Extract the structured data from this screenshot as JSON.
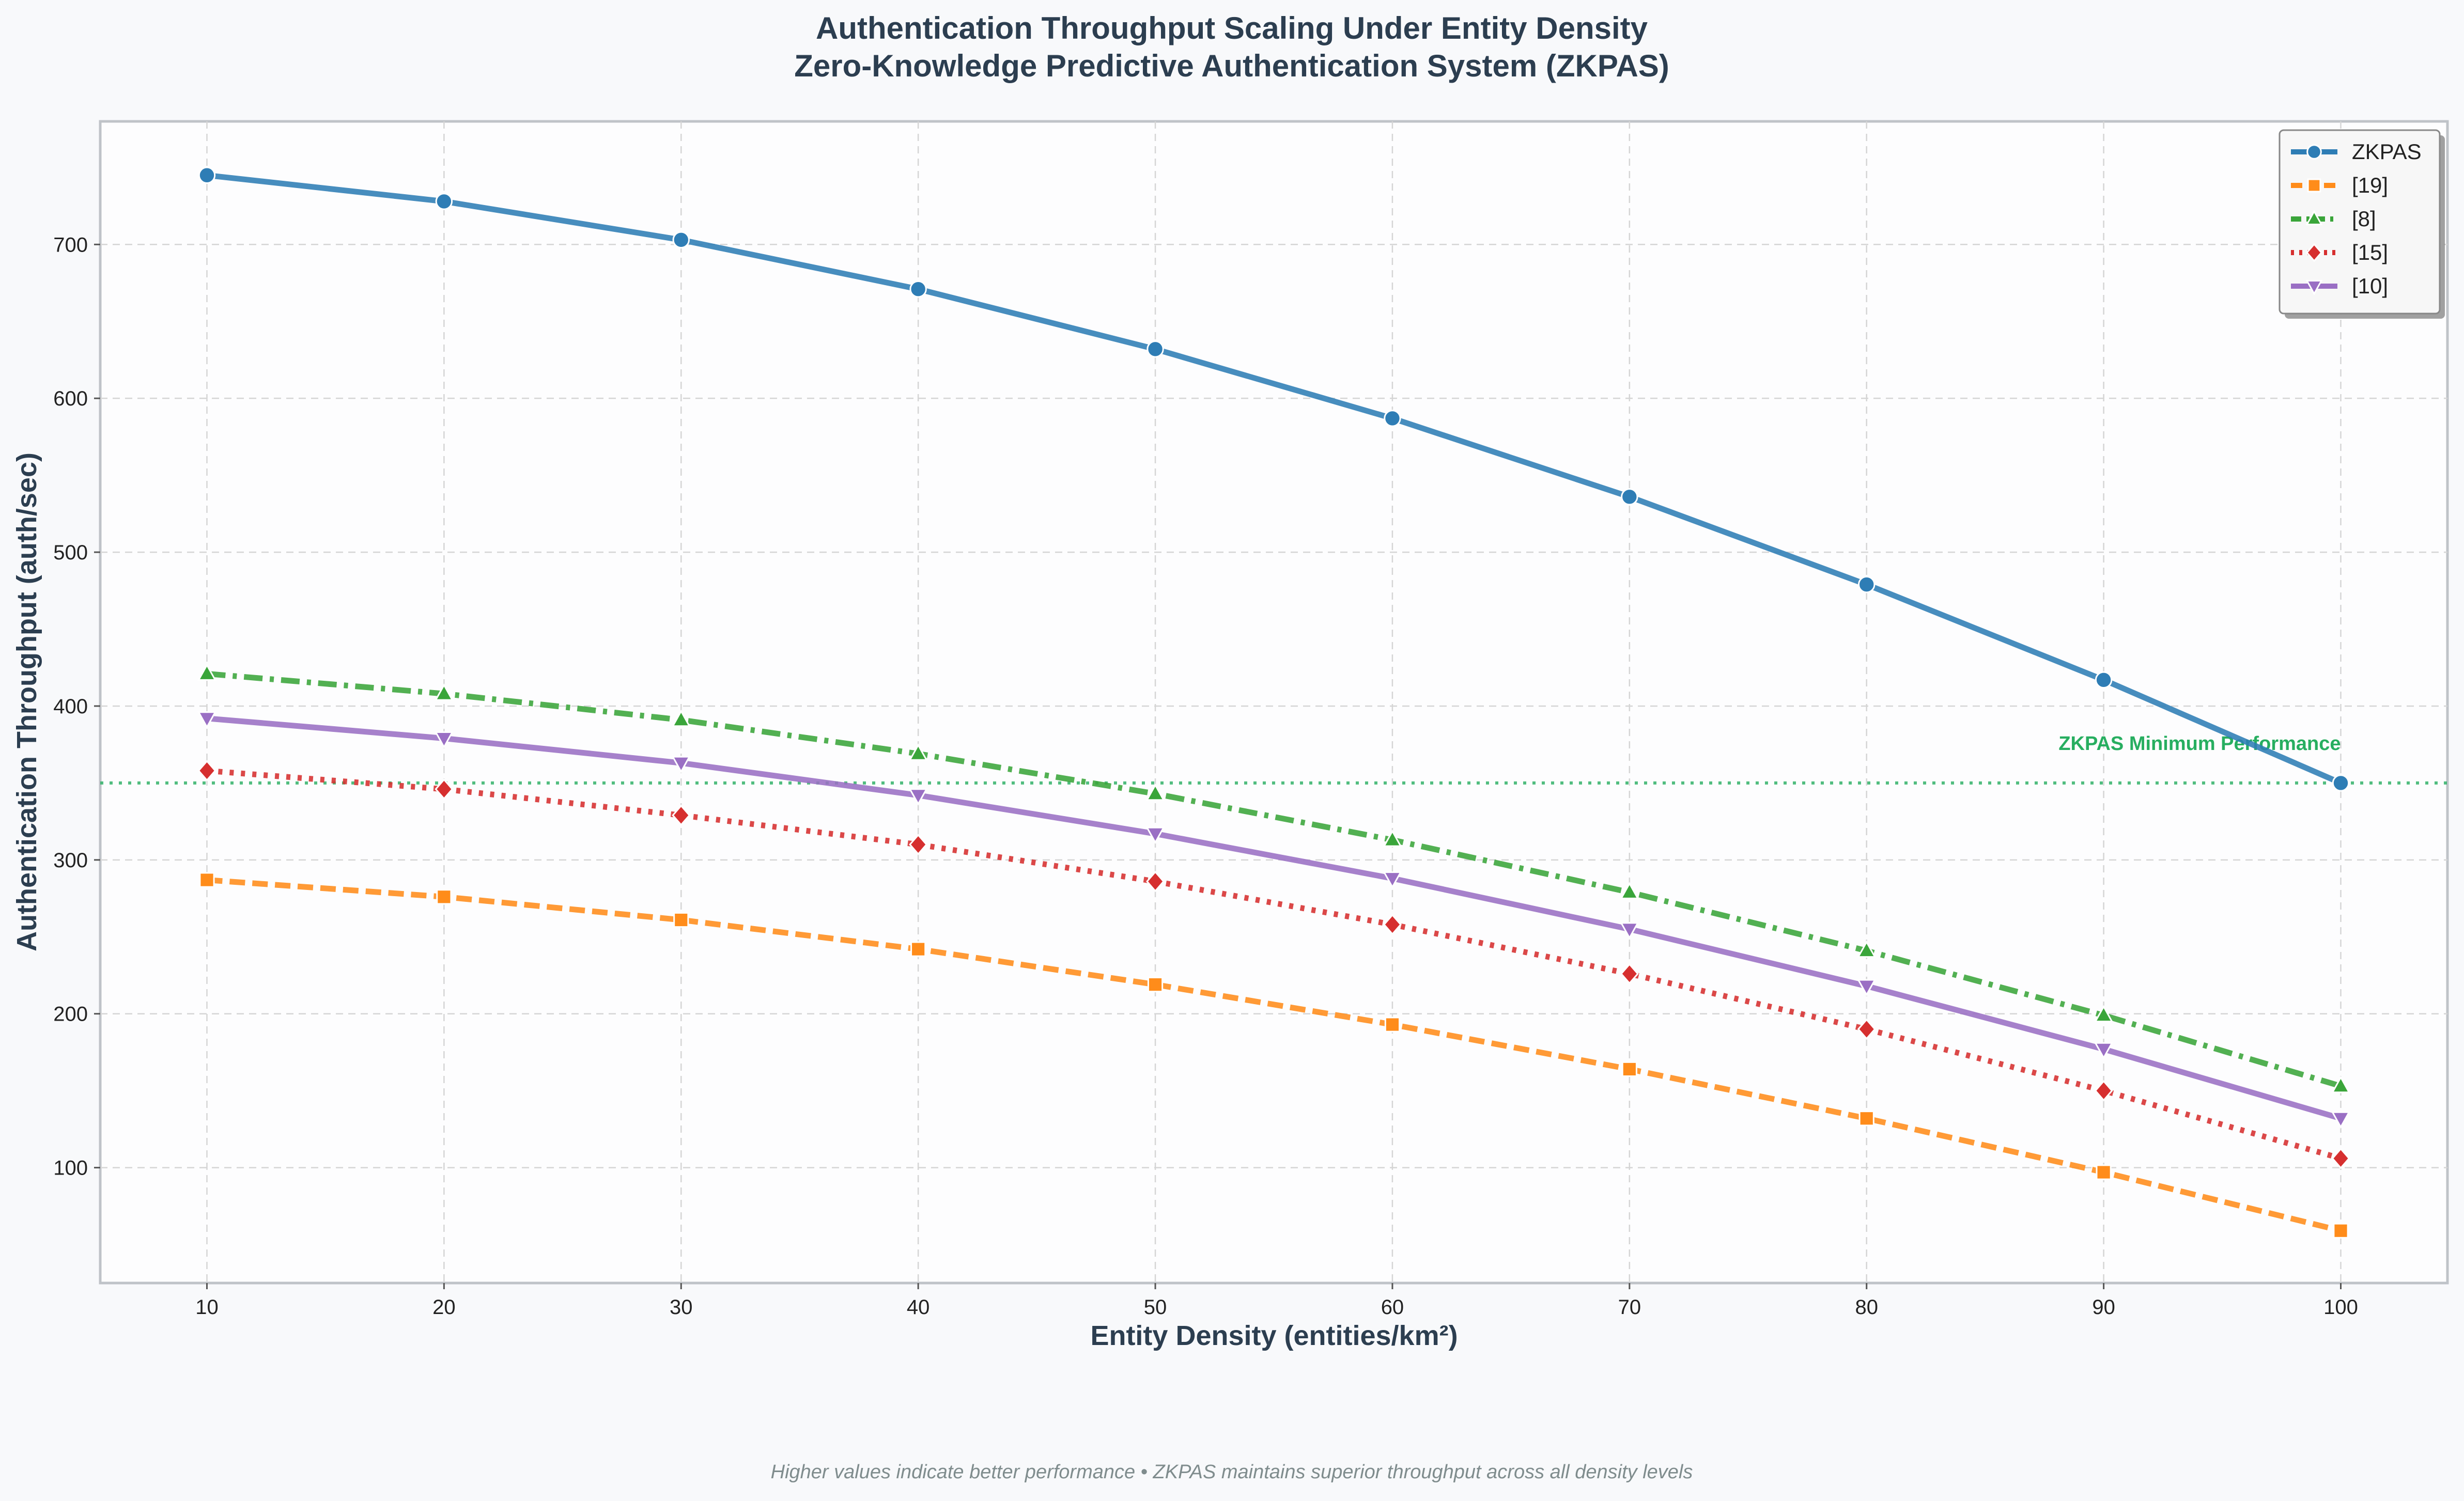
{
  "chart_data": {
    "type": "line",
    "title": "Authentication Throughput Scaling Under Entity Density",
    "subtitle": "Zero-Knowledge Predictive Authentication System (ZKPAS)",
    "xlabel": "Entity Density (entities/km²)",
    "ylabel": "Authentication Throughput (auth/sec)",
    "x": [
      10,
      20,
      30,
      40,
      50,
      60,
      70,
      80,
      90,
      100
    ],
    "xlim": [
      5.5,
      104.5
    ],
    "ylim": [
      25,
      780
    ],
    "xticks": [
      10,
      20,
      30,
      40,
      50,
      60,
      70,
      80,
      90,
      100
    ],
    "yticks": [
      100,
      200,
      300,
      400,
      500,
      600,
      700
    ],
    "grid": true,
    "legend_position": "top-right",
    "series": [
      {
        "name": "ZKPAS",
        "color": "#2e7db5",
        "dash": "solid",
        "marker": "circle",
        "values": [
          745,
          728,
          703,
          671,
          632,
          587,
          536,
          479,
          417,
          350
        ]
      },
      {
        "name": "[19]",
        "color": "#ff8c1a",
        "dash": "dashed",
        "marker": "square",
        "values": [
          287,
          276,
          261,
          242,
          219,
          193,
          164,
          132,
          97,
          59
        ]
      },
      {
        "name": "[8]",
        "color": "#3aa53a",
        "dash": "dashdot",
        "marker": "triangle-up",
        "values": [
          421,
          408,
          391,
          369,
          343,
          313,
          279,
          241,
          199,
          153
        ]
      },
      {
        "name": "[15]",
        "color": "#d62f2f",
        "dash": "dotted",
        "marker": "diamond",
        "values": [
          358,
          346,
          329,
          310,
          286,
          258,
          226,
          190,
          150,
          106
        ]
      },
      {
        "name": "[10]",
        "color": "#9a6fc4",
        "dash": "solid",
        "marker": "triangle-down",
        "values": [
          392,
          379,
          363,
          342,
          317,
          288,
          255,
          218,
          177,
          132
        ]
      }
    ],
    "annotations": [
      {
        "text": "ZKPAS Minimum Performance",
        "y": 350,
        "color": "#27ae60",
        "style": "dotted-hline"
      }
    ],
    "footnote": "Higher values indicate better performance • ZKPAS maintains superior throughput across all density levels"
  }
}
